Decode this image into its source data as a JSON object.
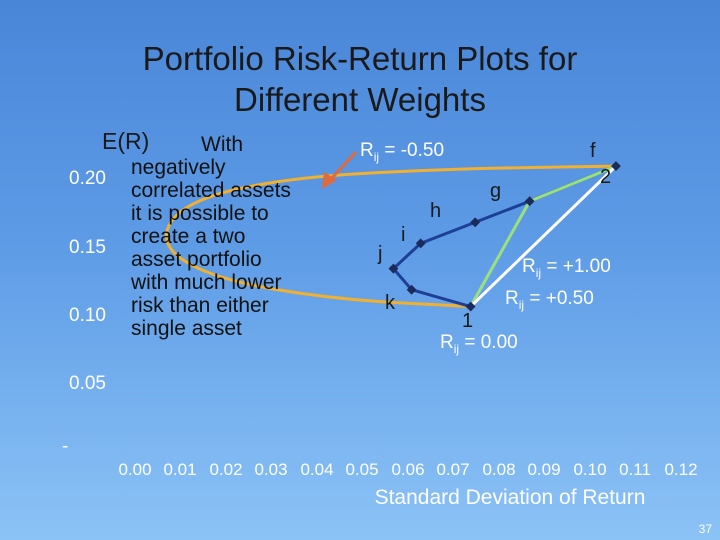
{
  "slide": {
    "title_line1": "Portfolio Risk-Return Plots for",
    "title_line2": "Different Weights",
    "page_number": "37",
    "note_line1": "With",
    "note_rest": "negatively correlated assets it is possible to create a two asset portfolio with much lower risk than either single asset"
  },
  "chart_data": {
    "type": "line",
    "ylabel": "E(R)",
    "xlabel": "Standard Deviation of Return",
    "yticks": [
      "-",
      "0.05",
      "0.10",
      "0.15",
      "0.20"
    ],
    "ytick_values": [
      0,
      0.05,
      0.1,
      0.15,
      0.2
    ],
    "xticks": [
      "0.00",
      "0.01",
      "0.02",
      "0.03",
      "0.04",
      "0.05",
      "0.06",
      "0.07",
      "0.08",
      "0.09",
      "0.10",
      "0.11",
      "0.12"
    ],
    "xlim": [
      0,
      0.12
    ],
    "ylim": [
      0,
      0.22
    ],
    "asset_1": {
      "label": "1",
      "sd": 0.075,
      "er": 0.1
    },
    "asset_2": {
      "label": "2",
      "sd": 0.107,
      "er": 0.2
    },
    "labeled_points": [
      {
        "label": "f",
        "sd": 0.107,
        "er": 0.2
      },
      {
        "label": "g",
        "sd": 0.088,
        "er": 0.175
      },
      {
        "label": "h",
        "sd": 0.076,
        "er": 0.16
      },
      {
        "label": "i",
        "sd": 0.064,
        "er": 0.145
      },
      {
        "label": "j",
        "sd": 0.058,
        "er": 0.127
      },
      {
        "label": "k",
        "sd": 0.062,
        "er": 0.112
      }
    ],
    "series": [
      {
        "name": "Rij = +1.00",
        "label_prefix": "R",
        "label_sub": "ij",
        "label_suffix": " = +1.00",
        "color": "#ffffff",
        "points": [
          [
            0.075,
            0.1
          ],
          [
            0.107,
            0.2
          ]
        ]
      },
      {
        "name": "Rij = +0.50",
        "label_prefix": "R",
        "label_sub": "ij",
        "label_suffix": " = +0.50",
        "color": "#9be07a",
        "points": [
          [
            0.075,
            0.1
          ],
          [
            0.088,
            0.175
          ],
          [
            0.107,
            0.2
          ]
        ]
      },
      {
        "name": "Rij = 0.00",
        "label_prefix": "R",
        "label_sub": "ij",
        "label_suffix": " = 0.00",
        "color": "#1e3f96",
        "points": [
          [
            0.075,
            0.1
          ],
          [
            0.062,
            0.112
          ],
          [
            0.058,
            0.127
          ],
          [
            0.064,
            0.145
          ],
          [
            0.076,
            0.16
          ],
          [
            0.088,
            0.175
          ],
          [
            0.107,
            0.2
          ]
        ]
      },
      {
        "name": "Rij = -0.50",
        "label_prefix": "R",
        "label_sub": "ij",
        "label_suffix": " = -0.50",
        "color": "#f0b030",
        "points": [
          [
            0.075,
            0.1
          ],
          [
            0.045,
            0.105
          ],
          [
            0.018,
            0.12
          ],
          [
            0.006,
            0.145
          ],
          [
            0.012,
            0.175
          ],
          [
            0.035,
            0.192
          ],
          [
            0.07,
            0.198
          ],
          [
            0.107,
            0.2
          ]
        ]
      }
    ],
    "colors": {
      "point": "#1b2b5a",
      "arrow": "#e06a3a"
    }
  }
}
